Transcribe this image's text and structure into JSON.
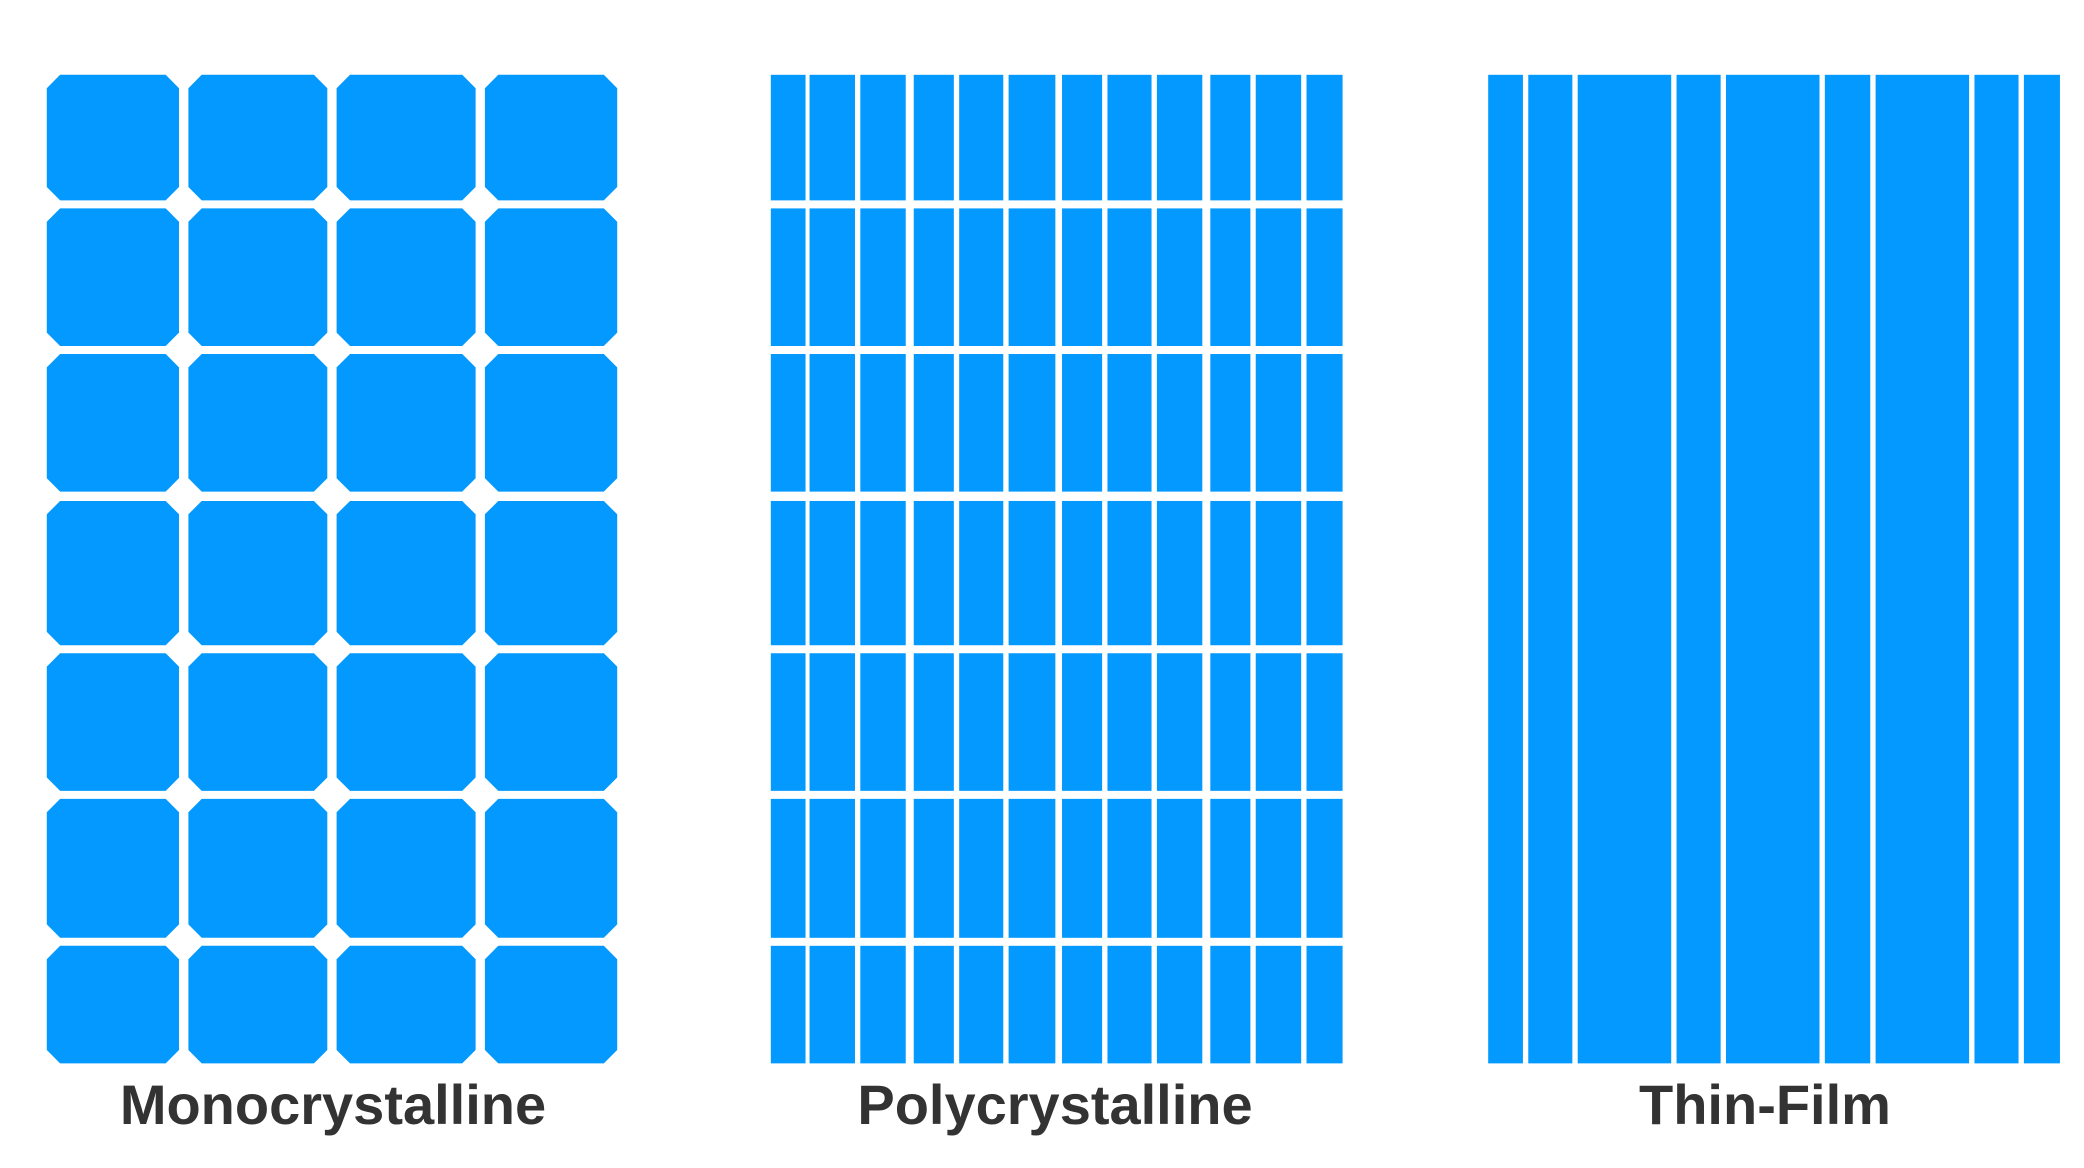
{
  "panels": [
    {
      "label": "Monocrystalline"
    },
    {
      "label": "Polycrystalline"
    },
    {
      "label": "Thin-Film"
    }
  ]
}
